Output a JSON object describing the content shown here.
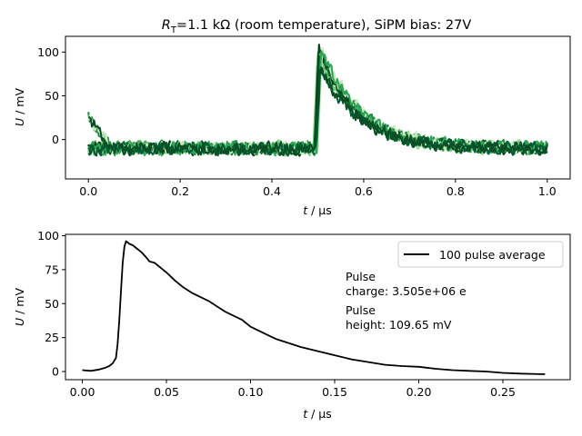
{
  "figure_title_prefix": "R",
  "figure_title_subscript": "T",
  "figure_title_rest": "=1.1 kΩ (room temperature), SiPM bias: 27V",
  "chart_data": [
    {
      "type": "line",
      "name": "traces",
      "xlabel_italic": "t",
      "xlabel_unit": " / µs",
      "ylabel_italic": "U",
      "ylabel_unit": " / mV",
      "xlim": [
        -0.05,
        1.05
      ],
      "ylim": [
        -45,
        118
      ],
      "xticks": [
        0.0,
        0.2,
        0.4,
        0.6,
        0.8,
        1.0
      ],
      "xtick_labels": [
        "0.0",
        "0.2",
        "0.4",
        "0.6",
        "0.8",
        "1.0"
      ],
      "yticks": [
        0,
        50,
        100
      ],
      "ytick_labels": [
        "0",
        "50",
        "100"
      ],
      "pulse": {
        "baseline": -10,
        "noise": 10,
        "onset": 0.495,
        "peak": 95,
        "peak_time": 0.505,
        "decay_tau": 0.085
      },
      "series_count": 10,
      "colors": [
        "#a1d99b",
        "#74c476",
        "#41ab5d",
        "#238b45",
        "#006d2c",
        "#00441b",
        "#c7e9c0",
        "#31a354",
        "#005a32",
        "#0b4d24"
      ]
    },
    {
      "type": "line",
      "name": "average",
      "xlabel_italic": "t",
      "xlabel_unit": " / µs",
      "ylabel_italic": "U",
      "ylabel_unit": " / mV",
      "xlim": [
        -0.01,
        0.29
      ],
      "ylim": [
        -6,
        101
      ],
      "xticks": [
        0.0,
        0.05,
        0.1,
        0.15,
        0.2,
        0.25
      ],
      "xtick_labels": [
        "0.00",
        "0.05",
        "0.10",
        "0.15",
        "0.20",
        "0.25"
      ],
      "yticks": [
        0,
        25,
        50,
        75,
        100
      ],
      "ytick_labels": [
        "0",
        "25",
        "50",
        "75",
        "100"
      ],
      "series": [
        {
          "name": "100 pulse average",
          "color": "#000000",
          "x": [
            0.0,
            0.005,
            0.01,
            0.013,
            0.016,
            0.018,
            0.02,
            0.021,
            0.022,
            0.023,
            0.024,
            0.025,
            0.026,
            0.027,
            0.028,
            0.03,
            0.032,
            0.035,
            0.038,
            0.04,
            0.043,
            0.046,
            0.05,
            0.055,
            0.06,
            0.065,
            0.07,
            0.075,
            0.08,
            0.085,
            0.09,
            0.095,
            0.1,
            0.105,
            0.11,
            0.115,
            0.12,
            0.13,
            0.14,
            0.15,
            0.16,
            0.17,
            0.18,
            0.19,
            0.2,
            0.21,
            0.22,
            0.23,
            0.24,
            0.25,
            0.26,
            0.275
          ],
          "y": [
            1,
            0.5,
            1.5,
            2.5,
            4,
            6,
            10,
            20,
            38,
            60,
            80,
            92,
            96,
            95,
            94,
            93,
            91,
            88,
            84,
            81,
            80,
            77,
            73,
            67,
            62,
            58,
            55,
            52,
            48,
            44,
            41,
            38,
            33,
            30,
            27,
            24,
            22,
            18,
            15,
            12,
            9,
            7,
            5,
            4,
            3.5,
            2,
            1,
            0.5,
            0,
            -1,
            -1.5,
            -2
          ]
        }
      ],
      "legend": {
        "label": "100 pulse average",
        "placement": "top-right"
      },
      "annotations": {
        "charge_line1": "Pulse",
        "charge_line2": "charge: 3.505e+06 e",
        "height_line1": "Pulse",
        "height_line2": "height: 109.65 mV"
      }
    }
  ]
}
